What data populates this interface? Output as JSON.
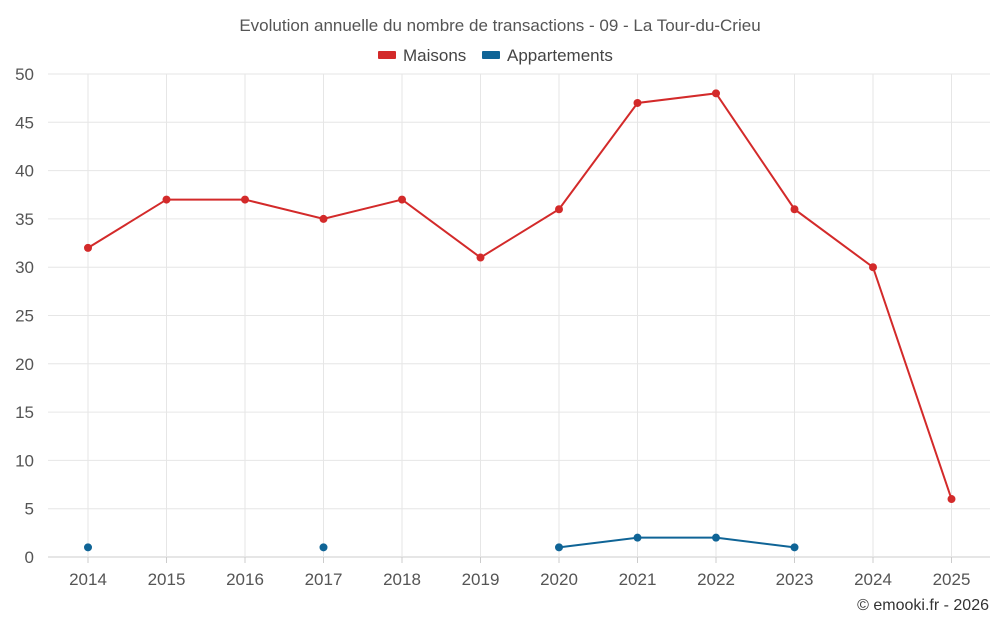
{
  "chart_data": {
    "type": "line",
    "title": "Evolution annuelle du nombre de transactions - 09 - La Tour-du-Crieu",
    "categories": [
      "2014",
      "2015",
      "2016",
      "2017",
      "2018",
      "2019",
      "2020",
      "2021",
      "2022",
      "2023",
      "2024",
      "2025"
    ],
    "series": [
      {
        "name": "Maisons",
        "color": "#d32a2a",
        "values": [
          32,
          37,
          37,
          35,
          37,
          31,
          36,
          47,
          48,
          36,
          30,
          6
        ]
      },
      {
        "name": "Appartements",
        "color": "#0f6496",
        "values": [
          1,
          null,
          null,
          1,
          null,
          null,
          1,
          2,
          2,
          1,
          null,
          null
        ]
      }
    ],
    "ylim": [
      0,
      50
    ],
    "yticks": [
      0,
      5,
      10,
      15,
      20,
      25,
      30,
      35,
      40,
      45,
      50
    ],
    "xlabel": "",
    "ylabel": "",
    "grid": true,
    "legend": "top-center"
  },
  "credit": "© emooki.fr - 2026"
}
